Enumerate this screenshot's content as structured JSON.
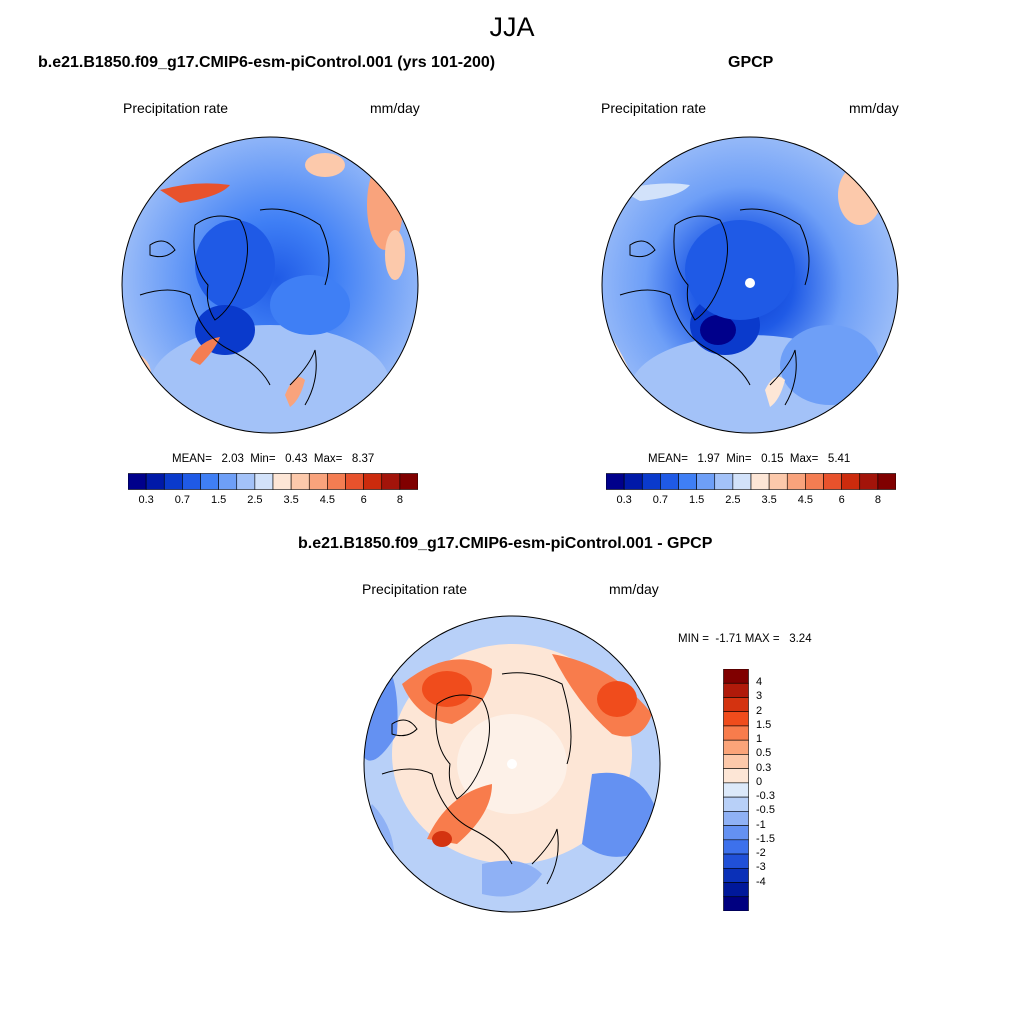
{
  "page_title": "JJA",
  "panels": {
    "left": {
      "title": "b.e21.B1850.f09_g17.CMIP6-esm-piControl.001 (yrs 101-200)",
      "label_left": "Precipitation rate",
      "label_right": "mm/day",
      "stats": "MEAN=   2.03  Min=   0.43  Max=   8.37"
    },
    "right": {
      "title": "GPCP",
      "label_left": "Precipitation rate",
      "label_right": "mm/day",
      "stats": "MEAN=   1.97  Min=   0.15  Max=   5.41"
    },
    "diff": {
      "title": "b.e21.B1850.f09_g17.CMIP6-esm-piControl.001 - GPCP",
      "label_left": "Precipitation rate",
      "label_right": "mm/day",
      "stats": "MIN =  -1.71 MAX =   3.24"
    }
  },
  "colorbar_abs": {
    "colors": [
      "#00008b",
      "#0019a8",
      "#0a3acc",
      "#1f5ae6",
      "#3f7ff5",
      "#6e9ff7",
      "#a3c2f8",
      "#d2e2fa",
      "#fde6d6",
      "#fcc9ab",
      "#f9a37c",
      "#f47d52",
      "#e8522c",
      "#cc2b0d",
      "#a3140a",
      "#800000"
    ],
    "ticks": [
      "0.3",
      "0.7",
      "1.5",
      "2.5",
      "3.5",
      "4.5",
      "6",
      "8"
    ]
  },
  "colorbar_diff": {
    "colors": [
      "#800000",
      "#b01a0a",
      "#d43310",
      "#f04c1c",
      "#f87c4c",
      "#fba479",
      "#fdc9aa",
      "#fde6d6",
      "#dce9fa",
      "#b8d0f8",
      "#8fb1f5",
      "#6491f2",
      "#3d71ec",
      "#2050d8",
      "#0a30b8",
      "#00189a",
      "#000080"
    ],
    "ticks": [
      "4",
      "3",
      "2",
      "1.5",
      "1",
      "0.5",
      "0.3",
      "0",
      "-0.3",
      "-0.5",
      "-1",
      "-1.5",
      "-2",
      "-3",
      "-4"
    ]
  }
}
